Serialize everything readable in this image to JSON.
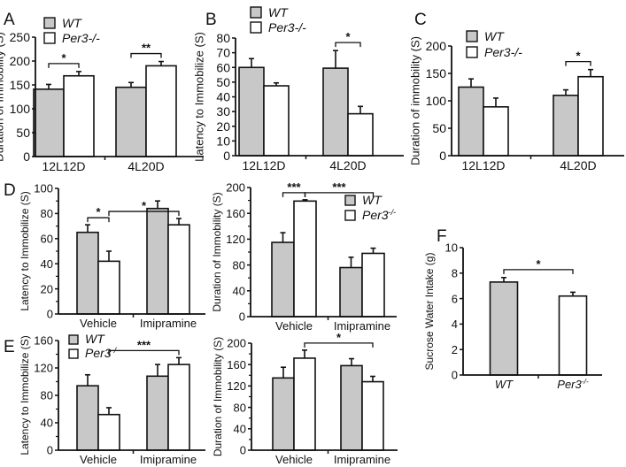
{
  "colors": {
    "wt": "#c8c8c8",
    "ko": "#ffffff",
    "stroke": "#111111"
  },
  "chart_data": [
    {
      "id": "A",
      "type": "bar",
      "panel_label": "A",
      "ylabel": "Duration of Immobility (S)",
      "xlabel": "",
      "ylim": [
        0,
        250
      ],
      "yticks": [
        0,
        50,
        100,
        150,
        200,
        250
      ],
      "categories": [
        "12L12D",
        "4L20D"
      ],
      "legend": {
        "placement": "top-left",
        "entries": [
          "WT",
          "Per3-/-"
        ],
        "italic": true
      },
      "series": [
        {
          "name": "WT",
          "values": [
            141,
            145
          ],
          "errors": [
            10,
            10
          ]
        },
        {
          "name": "Per3-/-",
          "values": [
            169,
            190
          ],
          "errors": [
            9,
            9
          ]
        }
      ],
      "significance": [
        {
          "from": [
            0,
            0
          ],
          "to": [
            0,
            1
          ],
          "label": "*"
        },
        {
          "from": [
            1,
            0
          ],
          "to": [
            1,
            1
          ],
          "label": "**"
        }
      ]
    },
    {
      "id": "B",
      "type": "bar",
      "panel_label": "B",
      "ylabel": "Latency to Immobilize (S)",
      "xlabel": "",
      "ylim": [
        0,
        80
      ],
      "yticks": [
        0,
        10,
        20,
        30,
        40,
        50,
        60,
        70,
        80
      ],
      "categories": [
        "12L12D",
        "4L20D"
      ],
      "legend": {
        "placement": "top-left",
        "entries": [
          "WT",
          "Per3-/-"
        ],
        "italic": true
      },
      "series": [
        {
          "name": "WT",
          "values": [
            60,
            59.5
          ],
          "errors": [
            6,
            12
          ]
        },
        {
          "name": "Per3-/-",
          "values": [
            47.5,
            28.5
          ],
          "errors": [
            2,
            5
          ]
        }
      ],
      "significance": [
        {
          "from": [
            1,
            0
          ],
          "to": [
            1,
            1
          ],
          "label": "*"
        }
      ]
    },
    {
      "id": "C",
      "type": "bar",
      "panel_label": "C",
      "ylabel": "Duration of immobility (S)",
      "xlabel": "",
      "ylim": [
        0,
        200
      ],
      "yticks": [
        0,
        50,
        100,
        150,
        200
      ],
      "categories": [
        "12L12D",
        "4L20D"
      ],
      "legend": {
        "placement": "top-left",
        "entries": [
          "WT",
          "Per3-/-"
        ],
        "italic": true
      },
      "series": [
        {
          "name": "WT",
          "values": [
            125,
            110
          ],
          "errors": [
            15,
            10
          ]
        },
        {
          "name": "Per3-/-",
          "values": [
            89,
            144
          ],
          "errors": [
            16,
            13
          ]
        }
      ],
      "significance": [
        {
          "from": [
            1,
            0
          ],
          "to": [
            1,
            1
          ],
          "label": "*"
        }
      ]
    },
    {
      "id": "D1",
      "type": "bar",
      "panel_label": "D",
      "ylabel": "Latency to Immobilize (S)",
      "xlabel": "",
      "ylim": [
        0,
        100
      ],
      "yticks": [
        0,
        20,
        40,
        60,
        80,
        100
      ],
      "categories": [
        "Vehicle",
        "Imipramine"
      ],
      "legend": null,
      "series": [
        {
          "name": "WT",
          "values": [
            65,
            84
          ],
          "errors": [
            6,
            6
          ]
        },
        {
          "name": "Per3-/-",
          "values": [
            42,
            71
          ],
          "errors": [
            8,
            5
          ]
        }
      ],
      "significance": [
        {
          "from": [
            0,
            0
          ],
          "to": [
            0,
            1
          ],
          "label": "*"
        },
        {
          "from": [
            0,
            1
          ],
          "to": [
            1,
            1
          ],
          "label": "*"
        }
      ]
    },
    {
      "id": "D2",
      "type": "bar",
      "panel_label": "",
      "ylabel": "Duration of Immobility (S)",
      "xlabel": "",
      "ylim": [
        0,
        200
      ],
      "yticks": [
        0,
        40,
        80,
        120,
        160,
        200
      ],
      "categories": [
        "Vehicle",
        "Imipramine"
      ],
      "legend": {
        "placement": "top-right",
        "entries": [
          "WT",
          "Per3-/-"
        ],
        "italic": true
      },
      "series": [
        {
          "name": "WT",
          "values": [
            115,
            76
          ],
          "errors": [
            15,
            16
          ]
        },
        {
          "name": "Per3-/-",
          "values": [
            179,
            98
          ],
          "errors": [
            2,
            8
          ]
        }
      ],
      "significance": [
        {
          "from": [
            0,
            0
          ],
          "to": [
            0,
            1
          ],
          "label": "***"
        },
        {
          "from": [
            0,
            1
          ],
          "to": [
            1,
            1
          ],
          "label": "***"
        }
      ]
    },
    {
      "id": "E1",
      "type": "bar",
      "panel_label": "E",
      "ylabel": "Latency to Immobilize (S)",
      "xlabel": "",
      "ylim": [
        0,
        160
      ],
      "yticks": [
        0,
        40,
        80,
        120,
        160
      ],
      "categories": [
        "Vehicle",
        "Imipramine"
      ],
      "legend": {
        "placement": "top-left",
        "entries": [
          "WT",
          "Per3-/-"
        ],
        "italic": true
      },
      "series": [
        {
          "name": "WT",
          "values": [
            94,
            108
          ],
          "errors": [
            16,
            17
          ]
        },
        {
          "name": "Per3-/-",
          "values": [
            52,
            125
          ],
          "errors": [
            10,
            10
          ]
        }
      ],
      "significance": [
        {
          "from": [
            0,
            1
          ],
          "to": [
            1,
            1
          ],
          "label": "***"
        }
      ]
    },
    {
      "id": "E2",
      "type": "bar",
      "panel_label": "",
      "ylabel": "Duration of Immobility (S)",
      "xlabel": "",
      "ylim": [
        0,
        200
      ],
      "yticks": [
        0,
        40,
        80,
        120,
        160,
        200
      ],
      "categories": [
        "Vehicle",
        "Imipramine"
      ],
      "legend": null,
      "series": [
        {
          "name": "WT",
          "values": [
            135,
            158
          ],
          "errors": [
            20,
            13
          ]
        },
        {
          "name": "Per3-/-",
          "values": [
            172,
            128
          ],
          "errors": [
            15,
            10
          ]
        }
      ],
      "significance": [
        {
          "from": [
            0,
            1
          ],
          "to": [
            1,
            1
          ],
          "label": "*"
        }
      ]
    },
    {
      "id": "F",
      "type": "bar",
      "panel_label": "F",
      "ylabel": "Sucrose Water Intake (g)",
      "xlabel": "",
      "ylim": [
        0,
        10
      ],
      "yticks": [
        0,
        2,
        4,
        6,
        8,
        10
      ],
      "categories": [
        "WT",
        "Per3-/-"
      ],
      "legend": null,
      "series": [
        {
          "name": "Intake",
          "values": [
            7.3,
            6.2
          ],
          "errors": [
            0.35,
            0.3
          ]
        }
      ],
      "significance": [
        {
          "from": [
            0,
            0
          ],
          "to": [
            1,
            0
          ],
          "label": "*"
        }
      ]
    }
  ]
}
